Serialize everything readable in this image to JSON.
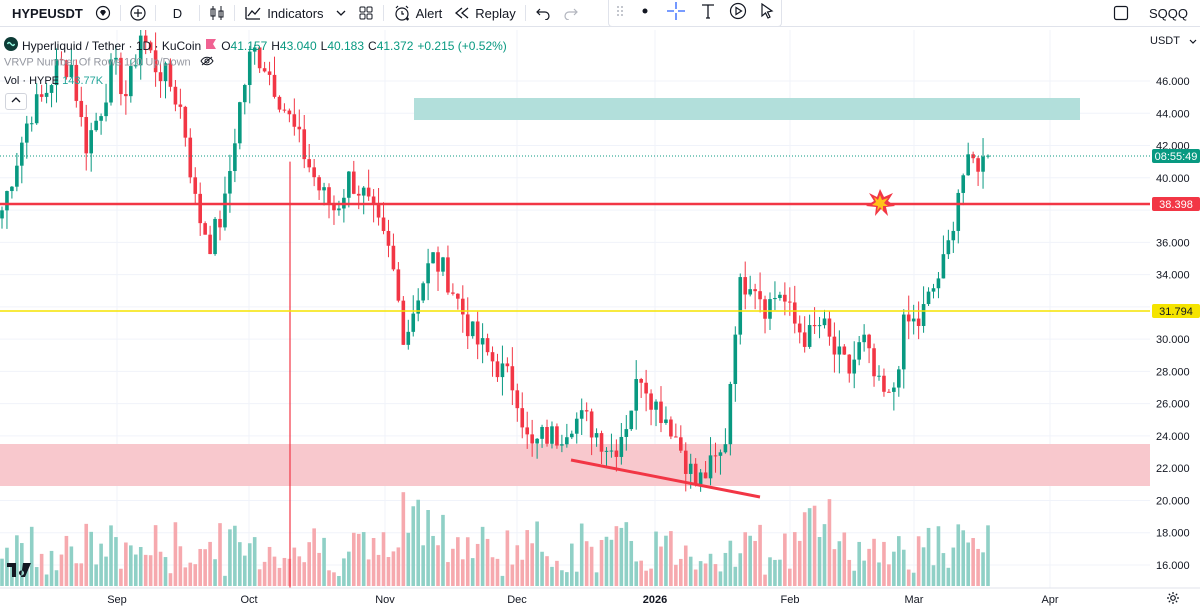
{
  "toolbar": {
    "symbol": "HYPEUSDT",
    "interval": "D",
    "indicators_label": "Indicators",
    "alert_label": "Alert",
    "replay_label": "Replay",
    "account_label": "SQQQ"
  },
  "legend": {
    "title": "Hyperliquid / Tether · 1D · KuCoin",
    "open_key": "O",
    "open": "41.157",
    "high_key": "H",
    "high": "43.040",
    "low_key": "L",
    "low": "40.183",
    "close_key": "C",
    "close": "41.372",
    "change": "+0.215 (+0.52%)",
    "vrvp": "VRVP Number Of Rows 120 Up/Down",
    "vol_label": "Vol · HYPE",
    "vol_value": "143.77K"
  },
  "price_axis": {
    "currency": "USDT",
    "ticks": [
      "46.000",
      "44.000",
      "42.000",
      "40.000",
      "36.000",
      "34.000",
      "30.000",
      "28.000",
      "26.000",
      "24.000",
      "22.000",
      "20.000",
      "18.000",
      "16.000"
    ],
    "countdown": "08:55:49",
    "red_level": "38.398",
    "yellow_level": "31.794"
  },
  "time_axis": {
    "labels": [
      "Sep",
      "Oct",
      "Nov",
      "Dec",
      "2026",
      "Feb",
      "Mar",
      "Apr"
    ]
  },
  "colors": {
    "up": "#089981",
    "down": "#f23645",
    "up_vol": "#8fd0c6",
    "down_vol": "#f6a9ae",
    "red_line": "#f23645",
    "yellow_line": "#f5e400",
    "supply_zone": "#b2dfdb",
    "demand_zone": "#f8c5ca"
  },
  "chart_data": {
    "type": "candlestick",
    "ylim": [
      15,
      48
    ],
    "x_months": [
      "Sep",
      "Oct",
      "Nov",
      "Dec",
      "2026",
      "Feb",
      "Mar",
      "Apr"
    ],
    "closes_approx": [
      38,
      41,
      44,
      45,
      47,
      47,
      42,
      44,
      47,
      45,
      49,
      47,
      46,
      44,
      38,
      36,
      38,
      44,
      48,
      47,
      45,
      43,
      41,
      39,
      38,
      40,
      39,
      37,
      35,
      30,
      33,
      35,
      34,
      32,
      30,
      29,
      28,
      27,
      23,
      24,
      24,
      25,
      25,
      24,
      23,
      25,
      28,
      26,
      25,
      23,
      21,
      22,
      23,
      33,
      34,
      32,
      33,
      31,
      30,
      31,
      29,
      28,
      30,
      27,
      26,
      31,
      31,
      33,
      35,
      40,
      41,
      41
    ],
    "horizontal_levels": [
      38.398,
      31.794
    ],
    "last_close": 41.372
  }
}
